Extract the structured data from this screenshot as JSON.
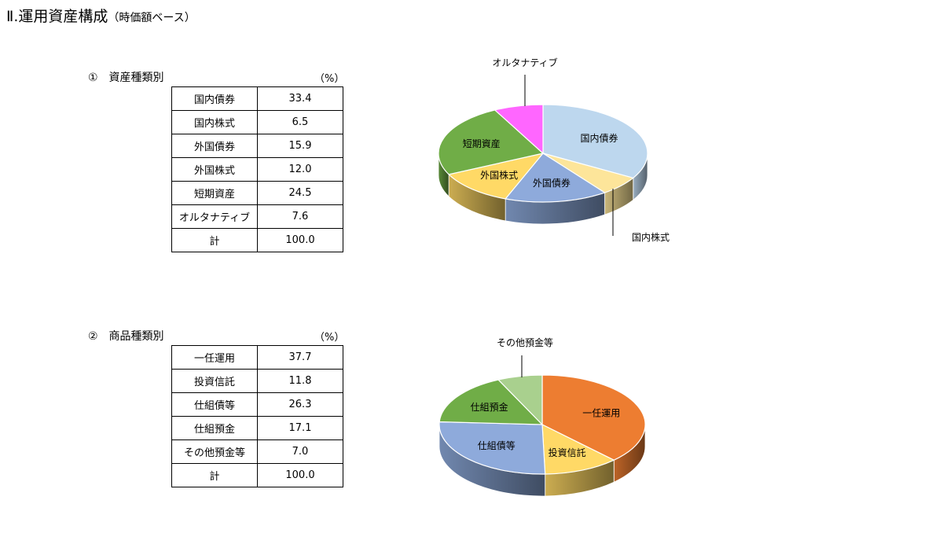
{
  "title": "Ⅱ.運用資産構成",
  "subtitle": "（時価額ベース）",
  "unit": "（%）",
  "chart_data": [
    {
      "type": "pie",
      "heading": "①　資産種類別",
      "categories": [
        "国内債券",
        "国内株式",
        "外国債券",
        "外国株式",
        "短期資産",
        "オルタナティブ"
      ],
      "values": [
        33.4,
        6.5,
        15.9,
        12.0,
        24.5,
        7.6
      ],
      "total_label": "計",
      "total": "100.0",
      "display": [
        "33.4",
        "6.5",
        "15.9",
        "12.0",
        "24.5",
        "7.6"
      ],
      "colors": [
        "#bdd7ee",
        "#fde59a",
        "#8eaadb",
        "#ffd966",
        "#70ad47",
        "#ff66ff"
      ],
      "leader_labels": [
        "国内株式",
        "オルタナティブ"
      ],
      "style": "3d"
    },
    {
      "type": "pie",
      "heading": "②　商品種類別",
      "categories": [
        "一任運用",
        "投資信託",
        "仕組債等",
        "仕組預金",
        "その他預金等"
      ],
      "values": [
        37.7,
        11.8,
        26.3,
        17.1,
        7.0
      ],
      "total_label": "計",
      "total": "100.0",
      "display": [
        "37.7",
        "11.8",
        "26.3",
        "17.1",
        "7.0"
      ],
      "colors": [
        "#ed7d31",
        "#ffd966",
        "#8eaadb",
        "#70ad47",
        "#a9d08e"
      ],
      "leader_labels": [
        "その他預金等"
      ],
      "style": "3d"
    }
  ]
}
